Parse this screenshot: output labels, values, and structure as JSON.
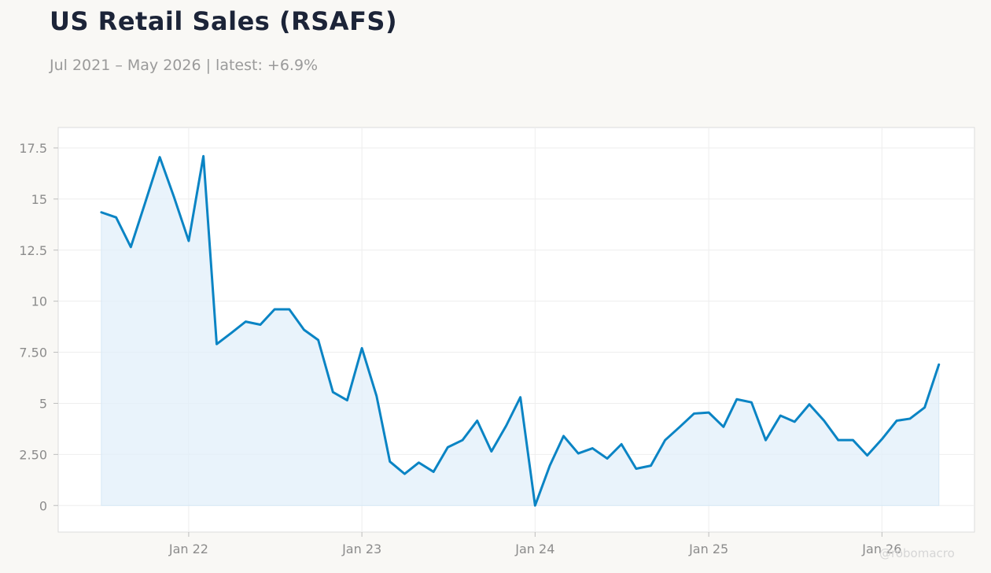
{
  "header": {
    "title": "US Retail Sales (RSAFS)",
    "subtitle": "Jul 2021 – May 2026 | latest: +6.9%"
  },
  "watermark": "@robomacro",
  "colors": {
    "line": "#0a84c4",
    "fill": "#e1eff9",
    "background": "#f9f8f5",
    "plot_background": "#ffffff",
    "grid": "#eeeeee",
    "axis": "#dcdcdc",
    "tick_text": "#8c8c8c",
    "title": "#1c2438"
  },
  "chart_data": {
    "type": "area",
    "title": "US Retail Sales (RSAFS)",
    "subtitle": "Jul 2021 – May 2026 | latest: +6.9%",
    "xlabel": "",
    "ylabel": "",
    "grid": true,
    "legend": "none",
    "ylim": [
      -1.3,
      18.5
    ],
    "xlim": [
      "2021-04-01",
      "2026-07-15"
    ],
    "y_ticks": [
      0,
      2.5,
      5,
      7.5,
      10,
      12.5,
      15,
      17.5
    ],
    "y_tick_labels": [
      "0",
      "2.50",
      "5",
      "7.50",
      "10",
      "12.5",
      "15",
      "17.5"
    ],
    "x_ticks": [
      "2022-01-01",
      "2023-01-01",
      "2024-01-01",
      "2025-01-01",
      "2026-01-01"
    ],
    "x_tick_labels": [
      "Jan 22",
      "Jan 23",
      "Jan 24",
      "Jan 25",
      "Jan 26"
    ],
    "x": [
      "2021-07-01",
      "2021-08-01",
      "2021-09-01",
      "2021-10-01",
      "2021-11-01",
      "2021-12-01",
      "2022-01-01",
      "2022-02-01",
      "2022-03-01",
      "2022-04-01",
      "2022-05-01",
      "2022-06-01",
      "2022-07-01",
      "2022-08-01",
      "2022-09-01",
      "2022-10-01",
      "2022-11-01",
      "2022-12-01",
      "2023-01-01",
      "2023-02-01",
      "2023-03-01",
      "2023-04-01",
      "2023-05-01",
      "2023-06-01",
      "2023-07-01",
      "2023-08-01",
      "2023-09-01",
      "2023-10-01",
      "2023-11-01",
      "2023-12-01",
      "2024-01-01",
      "2024-02-01",
      "2024-03-01",
      "2024-04-01",
      "2024-05-01",
      "2024-06-01",
      "2024-07-01",
      "2024-08-01",
      "2024-09-01",
      "2024-10-01",
      "2024-11-01",
      "2024-12-01",
      "2025-01-01",
      "2025-02-01",
      "2025-03-01",
      "2025-04-01",
      "2025-05-01",
      "2025-06-01",
      "2025-07-01",
      "2025-08-01",
      "2025-09-01",
      "2025-10-01",
      "2025-11-01",
      "2025-12-01",
      "2026-01-01",
      "2026-02-01",
      "2026-03-01",
      "2026-04-01",
      "2026-05-01"
    ],
    "series": [
      {
        "values": [
          14.35,
          14.1,
          12.65,
          14.8,
          17.05,
          15.1,
          12.95,
          17.1,
          7.9,
          8.45,
          9.0,
          8.85,
          9.6,
          9.6,
          8.6,
          8.1,
          5.55,
          5.15,
          7.7,
          5.35,
          2.15,
          1.55,
          2.1,
          1.65,
          2.85,
          3.2,
          4.15,
          2.65,
          3.9,
          5.3,
          0.0,
          1.95,
          3.4,
          2.55,
          2.8,
          2.3,
          3.0,
          1.8,
          1.95,
          3.2,
          3.85,
          4.5,
          4.55,
          3.85,
          5.2,
          5.05,
          3.2,
          4.4,
          4.1,
          4.95,
          4.15,
          3.2,
          3.2,
          2.45,
          3.25,
          4.15,
          4.25,
          4.8,
          6.9
        ]
      }
    ]
  }
}
